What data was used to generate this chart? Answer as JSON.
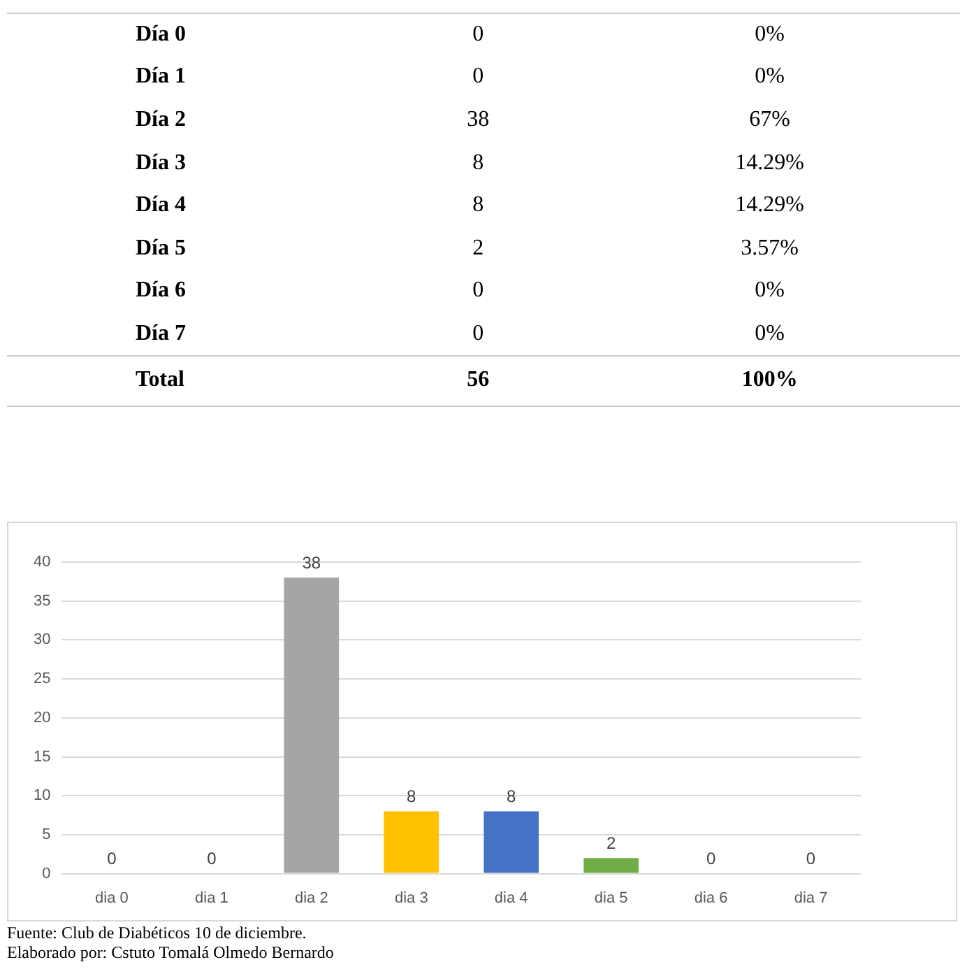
{
  "chart_data": [
    {
      "type": "other",
      "data_labels": true,
      "categories": [
        "Día 0",
        "Día 1",
        "Día 2",
        "Día 3",
        "Día 4",
        "Día 5",
        "Día 6",
        "Día 7",
        "Total"
      ],
      "series": [
        {
          "values": [
            0,
            0,
            38,
            8,
            8,
            2,
            0,
            0,
            56
          ]
        },
        {
          "values": [
            0,
            0,
            67,
            14.29,
            14.29,
            3.57,
            0,
            0,
            100
          ],
          "value_labels": [
            "0%",
            "0%",
            "67%",
            "14.29%",
            "14.29%",
            "3.57%",
            "0%",
            "0%",
            "100%"
          ]
        }
      ]
    },
    {
      "type": "bar",
      "categories": [
        "dia 0",
        "dia 1",
        "dia 2",
        "dia 3",
        "dia 4",
        "dia 5",
        "dia 6",
        "dia 7"
      ],
      "values": [
        0,
        0,
        38,
        8,
        8,
        2,
        0,
        0
      ],
      "colors": [
        "#4a7eb0",
        "#c55a11",
        "#a5a5a5",
        "#ffc000",
        "#4472c4",
        "#70ad47",
        "#264478",
        "#843c0c"
      ],
      "ylim": [
        0,
        40
      ],
      "yticks": [
        0,
        5,
        10,
        15,
        20,
        25,
        30,
        35,
        40
      ],
      "grid": "y",
      "legend": false,
      "data_labels": true,
      "annotations": [
        "Fuente: Club de Diabéticos 10 de diciembre.",
        "Elaborado por: Cstuto Tomalá Olmedo Bernardo"
      ]
    }
  ]
}
